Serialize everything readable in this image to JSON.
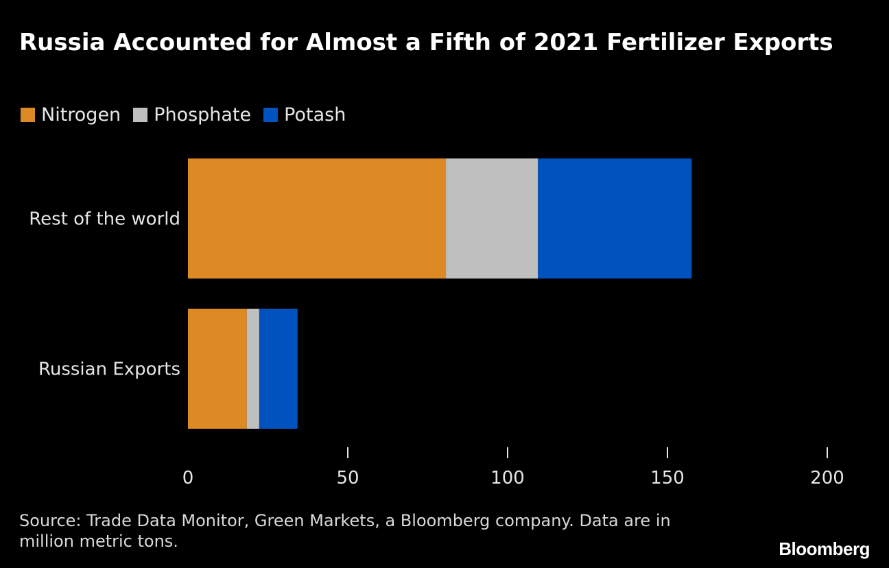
{
  "title": "Russia Accounted for Almost a Fifth of 2021 Fertilizer Exports",
  "source": "Source: Trade Data Monitor, Green Markets, a Bloomberg company. Data are in million metric tons.",
  "brand": "Bloomberg",
  "colors": {
    "background": "#000000",
    "nitrogen": "#DD8A24",
    "phosphate": "#BFBFBF",
    "potash": "#0052BE",
    "text": "#E6E6E6"
  },
  "legend": [
    {
      "label": "Nitrogen",
      "color": "#DD8A24"
    },
    {
      "label": "Phosphate",
      "color": "#BFBFBF"
    },
    {
      "label": "Potash",
      "color": "#0052BE"
    }
  ],
  "chart_data": {
    "type": "bar",
    "orientation": "horizontal",
    "stacked": true,
    "title": "Russia Accounted for Almost a Fifth of 2021 Fertilizer Exports",
    "categories": [
      "Rest of the world",
      "Russian Exports"
    ],
    "series": [
      {
        "name": "Nitrogen",
        "color": "#DD8A24",
        "values": [
          80.7,
          18.4
        ]
      },
      {
        "name": "Phosphate",
        "color": "#BFBFBF",
        "values": [
          28.8,
          3.9
        ]
      },
      {
        "name": "Potash",
        "color": "#0052BE",
        "values": [
          48.1,
          12.0
        ]
      }
    ],
    "xlim": [
      0,
      200
    ],
    "xticks": [
      0,
      50,
      100,
      150,
      200
    ],
    "xlabel": "",
    "ylabel": "",
    "grid": false,
    "legend_position": "top-left"
  }
}
